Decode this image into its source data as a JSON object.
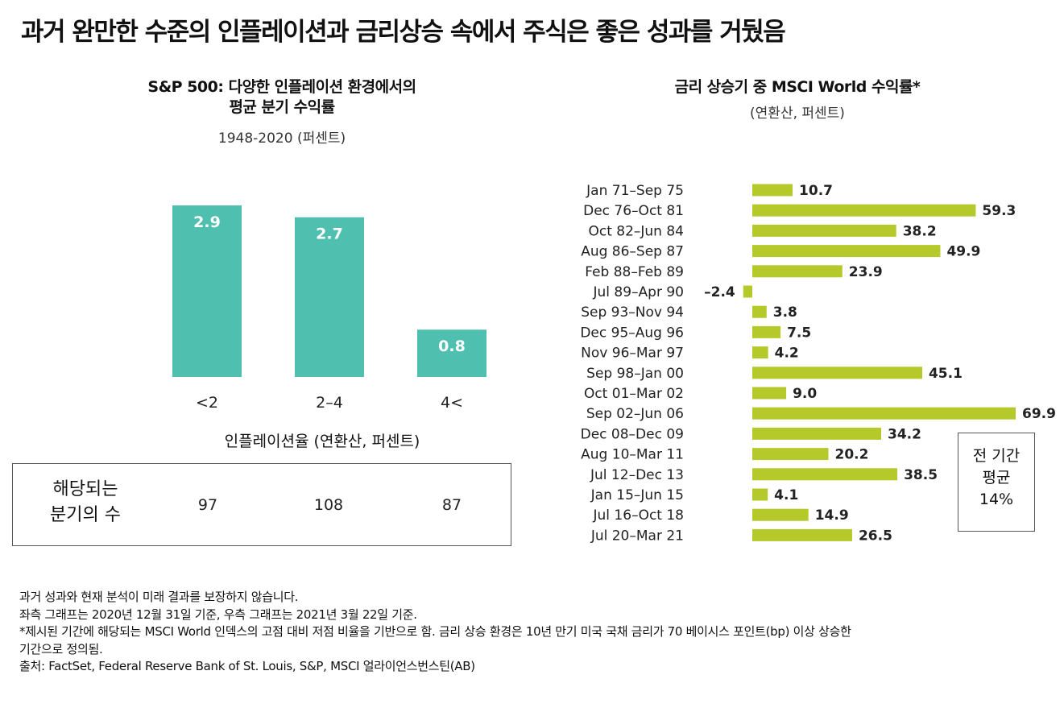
{
  "title": "과거 완만한 수준의 인플레이션과 금리상승 속에서 주식은 좋은 성과를 거뒀음",
  "left": {
    "title_line1": "S&P 500: 다양한 인플레이션 환경에서의",
    "title_line2": "평균 분기 수익률",
    "subtitle": "1948-2020 (퍼센트)",
    "xlabel": "인플레이션율 (연환산, 퍼센트)",
    "count_label_line1": "해당되는",
    "count_label_line2": "분기의 수",
    "counts": [
      "97",
      "108",
      "87"
    ]
  },
  "right": {
    "title": "금리 상승기 중 MSCI World 수익률*",
    "subtitle": "(연환산, 퍼센트)",
    "avg_line1": "전 기간",
    "avg_line2": "평균",
    "avg_value": "14%"
  },
  "notes": [
    "과거 성과와 현재 분석이 미래 결과를 보장하지 않습니다.",
    "좌측 그래프는 2020년 12월 31일 기준, 우측 그래프는 2021년 3월 22일 기준.",
    "*제시된 기간에 해당되는 MSCI World 인덱스의 고점 대비 저점 비율을 기반으로 함. 금리 상승 환경은 10년 만기 미국 국채 금리가 70 베이시스 포인트(bp) 이상 상승한",
    "기간으로 정의됨.",
    "출처: FactSet, Federal Reserve Bank of St. Louis, S&P, MSCI 얼라이언스번스틴(AB)"
  ],
  "colors": {
    "left_bar": "#4fc0b0",
    "right_bar": "#b5c92a",
    "bar_label_inside": "#ffffff",
    "bar_label_outside": "#222222"
  },
  "chart_data": [
    {
      "type": "bar",
      "orientation": "vertical",
      "title": "S&P 500: 다양한 인플레이션 환경에서의 평균 분기 수익률",
      "xlabel": "인플레이션율 (연환산, 퍼센트)",
      "ylabel": "",
      "categories": [
        "<2",
        "2–4",
        "4<"
      ],
      "values": [
        2.9,
        2.7,
        0.8
      ],
      "value_labels": [
        "2.9",
        "2.7",
        "0.8"
      ],
      "ylim": [
        0,
        2.9
      ],
      "grid": false,
      "legend": "none"
    },
    {
      "type": "bar",
      "orientation": "horizontal",
      "title": "금리 상승기 중 MSCI World 수익률*",
      "xlabel": "",
      "ylabel": "",
      "categories": [
        "Jan 71–Sep 75",
        "Dec 76–Oct 81",
        "Oct 82–Jun 84",
        "Aug 86–Sep 87",
        "Feb 88–Feb 89",
        "Jul 89–Apr 90",
        "Sep 93–Nov 94",
        "Dec 95–Aug 96",
        "Nov 96–Mar 97",
        "Sep 98–Jan 00",
        "Oct 01–Mar 02",
        "Sep 02–Jun 06",
        "Dec 08–Dec 09",
        "Aug 10–Mar 11",
        "Jul 12–Dec 13",
        "Jan 15–Jun 15",
        "Jul 16–Oct 18",
        "Jul 20–Mar 21"
      ],
      "values": [
        10.7,
        59.3,
        38.2,
        49.9,
        23.9,
        -2.4,
        3.8,
        7.5,
        4.2,
        45.1,
        9.0,
        69.9,
        34.2,
        20.2,
        38.5,
        4.1,
        14.9,
        26.5
      ],
      "value_labels": [
        "10.7",
        "59.3",
        "38.2",
        "49.9",
        "23.9",
        "–2.4",
        "3.8",
        "7.5",
        "4.2",
        "45.1",
        "9.0",
        "69.9",
        "34.2",
        "20.2",
        "38.5",
        "4.1",
        "14.9",
        "26.5"
      ],
      "xlim": [
        -2.4,
        69.9
      ],
      "grid": false,
      "legend": "none"
    }
  ]
}
